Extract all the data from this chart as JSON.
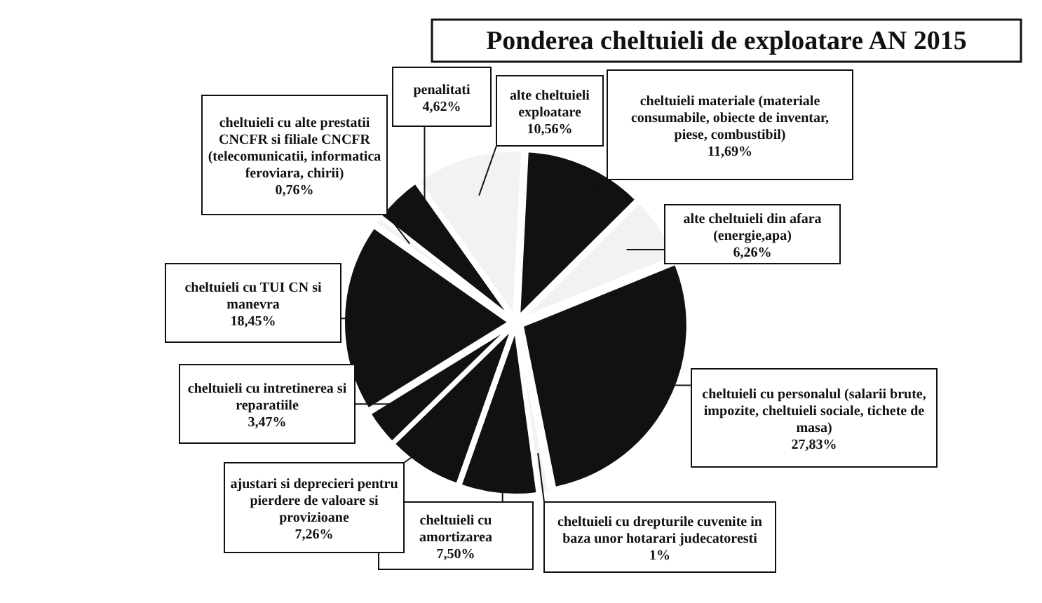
{
  "chart_data": {
    "type": "pie",
    "title": "Ponderea cheltuieli de exploatare AN 2015",
    "categories": [
      "cheltuieli materiale (materiale consumabile, obiecte de inventar, piese, combustibil)",
      "alte cheltuieli din afara (energie,apa)",
      "cheltuieli cu personalul (salarii brute, impozite, cheltuieli sociale, tichete de masa)",
      "cheltuieli cu drepturile cuvenite in baza unor hotarari judecatoresti",
      "cheltuieli cu amortizarea",
      "ajustari si deprecieri pentru pierdere de valoare si provizioane",
      "cheltuieli cu intretinerea si reparatiile",
      "cheltuieli cu TUI CN si manevra",
      "cheltuieli cu alte prestatii CNCFR si filiale CNCFR (telecomunicatii, informatica feroviara, chirii)",
      "penalitati",
      "alte cheltuieli exploatare"
    ],
    "values": [
      11.69,
      6.26,
      27.83,
      1,
      7.5,
      7.26,
      3.47,
      18.45,
      0.76,
      4.62,
      10.56
    ],
    "value_labels": [
      "11,69%",
      "6,26%",
      "27,83%",
      "1%",
      "7,50%",
      "7,26%",
      "3,47%",
      "18,45%",
      "0,76%",
      "4,62%",
      "10,56%"
    ],
    "colors": [
      "#111111",
      "#f2f2f2",
      "#111111",
      "#f2f2f2",
      "#111111",
      "#111111",
      "#111111",
      "#111111",
      "#f2f2f2",
      "#111111",
      "#f2f2f2"
    ]
  }
}
